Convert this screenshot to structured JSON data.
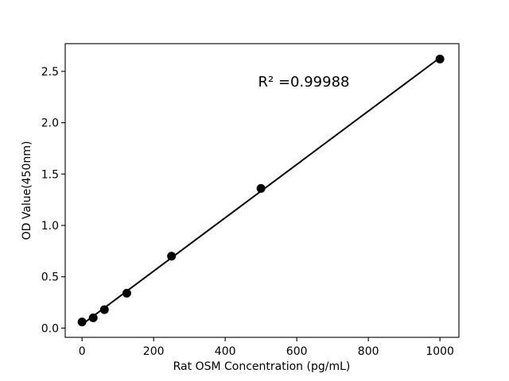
{
  "figure": {
    "background_color": "#ffffff",
    "text_color": "#000000"
  },
  "chart_data": {
    "type": "scatter",
    "title": "",
    "xlabel": "Rat OSM Concentration (pg/mL)",
    "ylabel": "OD Value(450nm)",
    "annotation": {
      "text": "R² =0.99988",
      "r_squared": 0.99988
    },
    "x": [
      0,
      31.25,
      62.5,
      125,
      250,
      500,
      1000
    ],
    "y": [
      0.06,
      0.1,
      0.18,
      0.34,
      0.7,
      1.36,
      2.62
    ],
    "fit": "linear",
    "x_tick_labels": [
      "0",
      "200",
      "400",
      "600",
      "800",
      "1000"
    ],
    "y_tick_labels": [
      "0.0",
      "0.5",
      "1.0",
      "1.5",
      "2.0",
      "2.5"
    ],
    "xlim": [
      -47,
      1053
    ],
    "ylim": [
      -0.09,
      2.77
    ],
    "marker_color": "#000000",
    "line_color": "#000000",
    "grid": false,
    "legend_position": null
  }
}
